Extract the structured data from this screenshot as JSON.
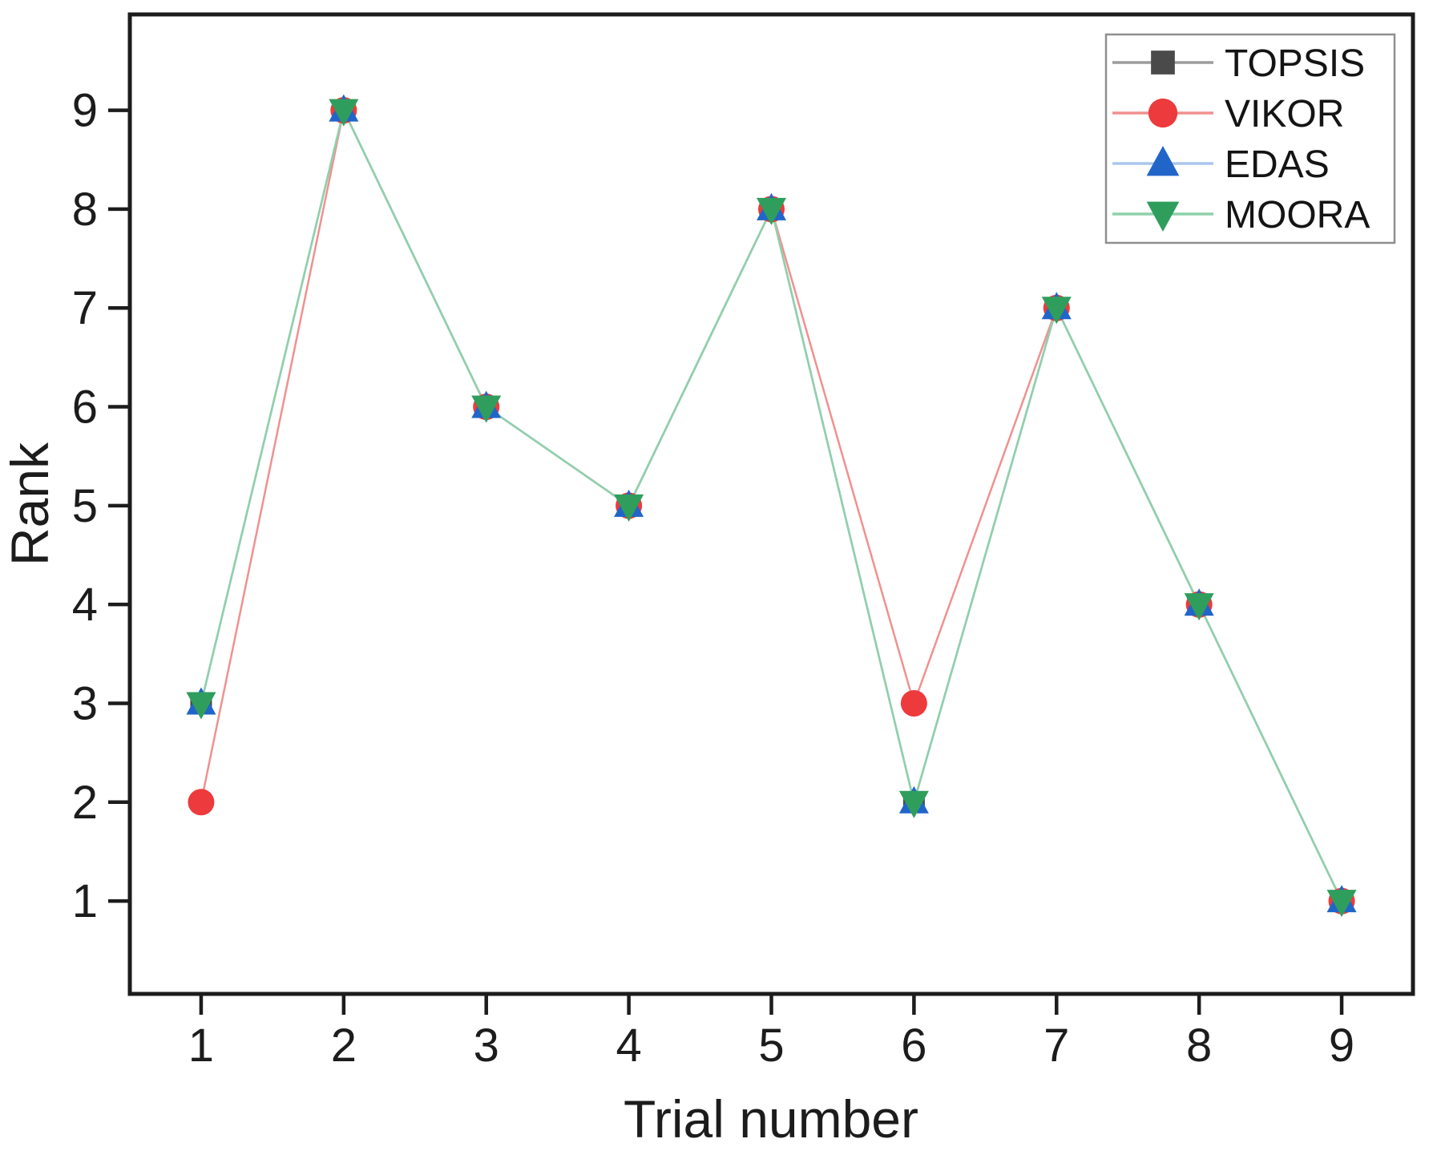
{
  "chart_data": {
    "type": "line",
    "title": "",
    "xlabel": "Trial number",
    "ylabel": "Rank",
    "x": [
      1,
      2,
      3,
      4,
      5,
      6,
      7,
      8,
      9
    ],
    "x_tick_labels": [
      "1",
      "2",
      "3",
      "4",
      "5",
      "6",
      "7",
      "8",
      "9"
    ],
    "y_ticks": [
      1,
      2,
      3,
      4,
      5,
      6,
      7,
      8,
      9
    ],
    "y_tick_labels": [
      "1",
      "2",
      "3",
      "4",
      "5",
      "6",
      "7",
      "8",
      "9"
    ],
    "xlim": [
      0.5,
      9.5
    ],
    "ylim": [
      0.06,
      9.97
    ],
    "grid": false,
    "legend_position": "top-right",
    "background_color": "#ffffff",
    "frame_color": "#1c1c1c",
    "series": [
      {
        "name": "TOPSIS",
        "marker": "square",
        "marker_color": "#4a4a4a",
        "line_color": "#9c9c9c",
        "values": [
          3,
          9,
          6,
          5,
          8,
          2,
          7,
          4,
          1
        ]
      },
      {
        "name": "VIKOR",
        "marker": "circle",
        "marker_color": "#ed3a3c",
        "line_color": "#f0918f",
        "values": [
          2,
          9,
          6,
          5,
          8,
          3,
          7,
          4,
          1
        ]
      },
      {
        "name": "EDAS",
        "marker": "triangle-up",
        "marker_color": "#2265c9",
        "line_color": "#aac6ee",
        "values": [
          3,
          9,
          6,
          5,
          8,
          2,
          7,
          4,
          1
        ]
      },
      {
        "name": "MOORA",
        "marker": "triangle-down",
        "marker_color": "#2f9e5c",
        "line_color": "#8fd1aa",
        "values": [
          3,
          9,
          6,
          5,
          8,
          2,
          7,
          4,
          1
        ]
      }
    ]
  }
}
